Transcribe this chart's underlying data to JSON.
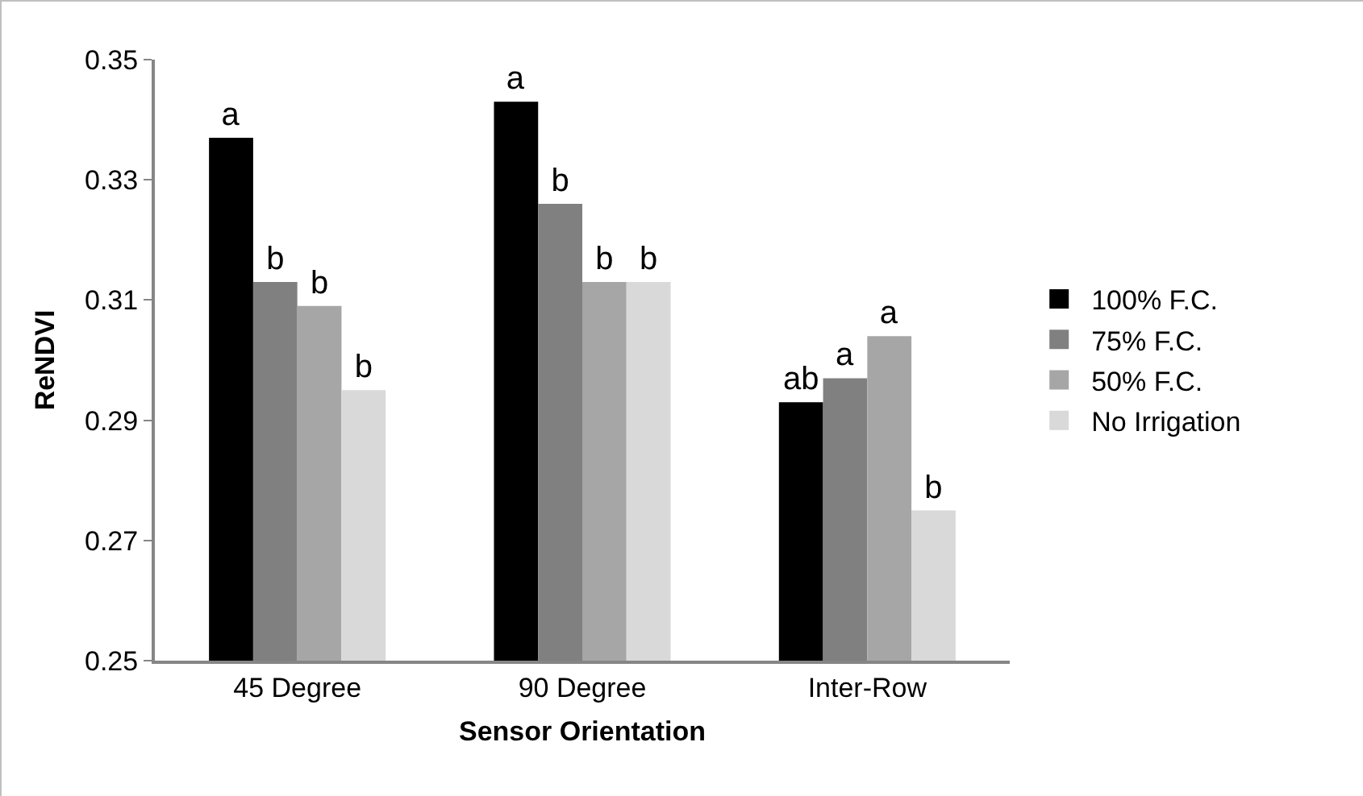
{
  "chart_data": {
    "type": "bar",
    "xlabel": "Sensor Orientation",
    "ylabel": "ReNDVI",
    "categories": [
      "45 Degree",
      "90 Degree",
      "Inter-Row"
    ],
    "series": [
      {
        "name": "100% F.C.",
        "color": "#000000",
        "values": [
          0.337,
          0.343,
          0.293
        ],
        "value_labels": [
          "a",
          "a",
          "ab"
        ]
      },
      {
        "name": "75% F.C.",
        "color": "#808080",
        "values": [
          0.313,
          0.326,
          0.297
        ],
        "value_labels": [
          "b",
          "b",
          "a"
        ]
      },
      {
        "name": "50% F.C.",
        "color": "#a6a6a6",
        "values": [
          0.309,
          0.313,
          0.304
        ],
        "value_labels": [
          "b",
          "b",
          "a"
        ]
      },
      {
        "name": "No Irrigation",
        "color": "#d9d9d9",
        "values": [
          0.295,
          0.313,
          0.275
        ],
        "value_labels": [
          "b",
          "b",
          "b"
        ]
      }
    ],
    "ylim": [
      0.25,
      0.35
    ],
    "yticks": [
      {
        "value": 0.25,
        "label": "0.25"
      },
      {
        "value": 0.27,
        "label": "0.27"
      },
      {
        "value": 0.29,
        "label": "0.29"
      },
      {
        "value": 0.31,
        "label": "0.31"
      },
      {
        "value": 0.33,
        "label": "0.33"
      },
      {
        "value": 0.35,
        "label": "0.35"
      }
    ],
    "grid": false,
    "legend": "right"
  }
}
